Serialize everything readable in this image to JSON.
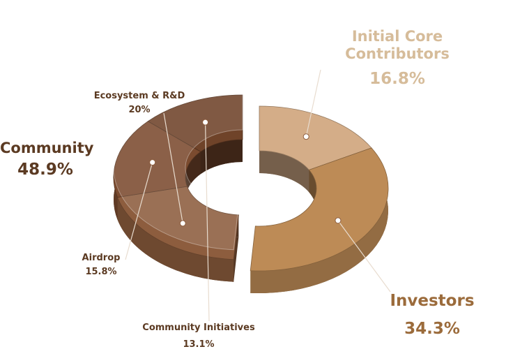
{
  "chart_data": {
    "type": "donut",
    "categories": [
      "Initial Core Contributors",
      "Investors",
      "Ecosystem & R&D",
      "Airdrop",
      "Community Initiatives"
    ],
    "values": [
      16.8,
      34.3,
      20,
      15.8,
      13.1
    ],
    "value_labels": [
      "16.8%",
      "34.3%",
      "20%",
      "15.8%",
      "13.1%"
    ],
    "colors": [
      "#d4ad88",
      "#bd8b56",
      "#8d5d3e",
      "#7b4b2f",
      "#6f4329"
    ],
    "group": {
      "name": "Community",
      "value": 48.9,
      "value_label": "48.9%"
    }
  }
}
